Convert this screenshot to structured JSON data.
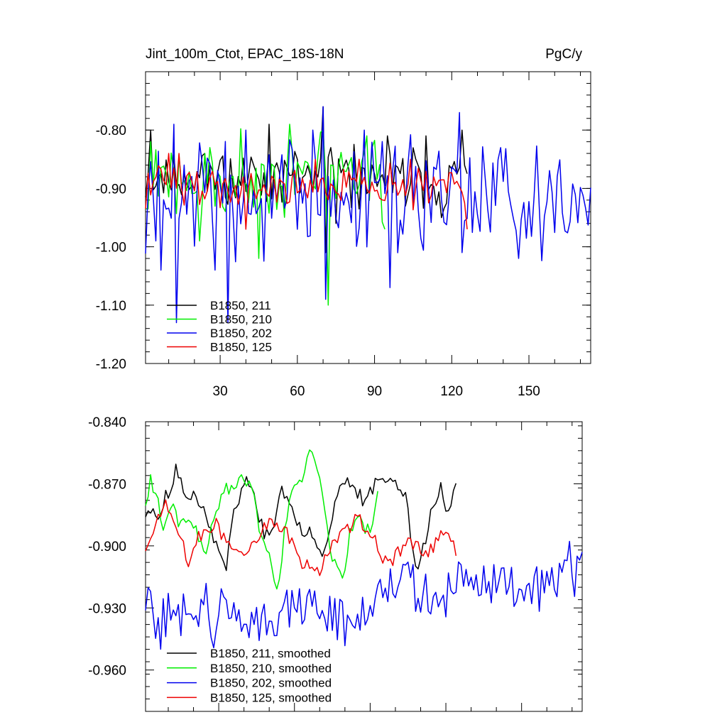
{
  "chart_data": [
    {
      "type": "line",
      "title": "Jint_100m_Ctot, EPAC_18S-18N",
      "units": "PgC/y",
      "xlim": [
        1,
        174
      ],
      "ylim": [
        -1.2,
        -0.7
      ],
      "xticks": [
        30,
        60,
        90,
        120,
        150
      ],
      "yticks": [
        -1.2,
        -1.1,
        -1.0,
        -0.9,
        -0.8
      ],
      "ytick_labels": [
        "-1.20",
        "-1.10",
        "-1.00",
        "-0.90",
        "-0.80"
      ],
      "legend_position": "bottom-left",
      "series": [
        {
          "name": "B1850, 211",
          "color": "#000000",
          "length": 126,
          "mean": -0.882,
          "noise": 0.04,
          "seed": 11,
          "peaks": [
            [
              3,
              -0.8
            ],
            [
              24,
              -0.84
            ],
            [
              49,
              -0.79
            ],
            [
              60,
              -0.85
            ],
            [
              70,
              -0.76
            ],
            [
              71,
              -1.01
            ],
            [
              73,
              -0.83
            ],
            [
              75,
              -0.96
            ],
            [
              95,
              -0.81
            ],
            [
              110,
              -0.81
            ],
            [
              116,
              -0.95
            ],
            [
              124,
              -0.8
            ]
          ]
        },
        {
          "name": "B1850, 210",
          "color": "#00ee00",
          "length": 94,
          "mean": -0.878,
          "noise": 0.05,
          "seed": 21,
          "peaks": [
            [
              3,
              -0.82
            ],
            [
              22,
              -0.99
            ],
            [
              26,
              -0.83
            ],
            [
              45,
              -1.02
            ],
            [
              57,
              -0.79
            ],
            [
              70,
              -0.8
            ],
            [
              72,
              -1.1
            ],
            [
              78,
              -0.87
            ],
            [
              87,
              -0.81
            ],
            [
              94,
              -0.97
            ]
          ]
        },
        {
          "name": "B1850, 202",
          "color": "#0000ee",
          "length": 174,
          "mean": -0.91,
          "noise": 0.07,
          "seed": 31,
          "peaks": [
            [
              5,
              -0.99
            ],
            [
              7,
              -1.04
            ],
            [
              12,
              -0.79
            ],
            [
              13,
              -1.13
            ],
            [
              16,
              -0.86
            ],
            [
              28,
              -1.04
            ],
            [
              33,
              -1.13
            ],
            [
              40,
              -0.8
            ],
            [
              60,
              -0.97
            ],
            [
              66,
              -0.8
            ],
            [
              70,
              -0.76
            ],
            [
              71,
              -1.09
            ],
            [
              86,
              -0.8
            ],
            [
              96,
              -1.07
            ],
            [
              123,
              -0.77
            ],
            [
              124,
              -1.01
            ],
            [
              139,
              -0.83
            ],
            [
              146,
              -1.02
            ],
            [
              176,
              -0.83
            ]
          ]
        },
        {
          "name": "B1850, 125",
          "color": "#ee0000",
          "length": 126,
          "mean": -0.895,
          "noise": 0.025,
          "seed": 41,
          "peaks": [
            [
              1,
              -0.935
            ],
            [
              10,
              -0.84
            ],
            [
              14,
              -0.84
            ],
            [
              40,
              -0.97
            ],
            [
              84,
              -0.85
            ],
            [
              104,
              -0.85
            ],
            [
              126,
              -0.97
            ]
          ]
        }
      ]
    },
    {
      "type": "line",
      "title": "",
      "units": "",
      "xlim": [
        1,
        174
      ],
      "ylim": [
        -0.98,
        -0.84
      ],
      "xticks": [
        30,
        60,
        90,
        120,
        150
      ],
      "yticks": [
        -0.96,
        -0.93,
        -0.9,
        -0.87,
        -0.84
      ],
      "ytick_labels": [
        "-0.960",
        "-0.930",
        "-0.900",
        "-0.870",
        "-0.840"
      ],
      "legend_position": "bottom-left",
      "series": [
        {
          "name": "B1850, 211, smoothed",
          "color": "#000000",
          "length": 121,
          "keypoints": [
            [
              1,
              -0.8845
            ],
            [
              3,
              -0.882
            ],
            [
              5,
              -0.887
            ],
            [
              10,
              -0.874
            ],
            [
              13,
              -0.864
            ],
            [
              16,
              -0.872
            ],
            [
              20,
              -0.876
            ],
            [
              24,
              -0.88
            ],
            [
              27,
              -0.893
            ],
            [
              30,
              -0.905
            ],
            [
              33,
              -0.91
            ],
            [
              36,
              -0.885
            ],
            [
              40,
              -0.868
            ],
            [
              44,
              -0.876
            ],
            [
              48,
              -0.895
            ],
            [
              51,
              -0.895
            ],
            [
              55,
              -0.872
            ],
            [
              58,
              -0.878
            ],
            [
              62,
              -0.892
            ],
            [
              66,
              -0.892
            ],
            [
              70,
              -0.905
            ],
            [
              74,
              -0.892
            ],
            [
              77,
              -0.876
            ],
            [
              80,
              -0.87
            ],
            [
              84,
              -0.872
            ],
            [
              88,
              -0.88
            ],
            [
              92,
              -0.87
            ],
            [
              96,
              -0.866
            ],
            [
              100,
              -0.868
            ],
            [
              104,
              -0.874
            ],
            [
              106,
              -0.893
            ],
            [
              108,
              -0.911
            ],
            [
              110,
              -0.908
            ],
            [
              114,
              -0.885
            ],
            [
              118,
              -0.872
            ],
            [
              121,
              -0.884
            ],
            [
              124,
              -0.872
            ]
          ]
        },
        {
          "name": "B1850, 210, smoothed",
          "color": "#00ee00",
          "length": 94,
          "keypoints": [
            [
              1,
              -0.879
            ],
            [
              3,
              -0.869
            ],
            [
              6,
              -0.876
            ],
            [
              8,
              -0.893
            ],
            [
              11,
              -0.88
            ],
            [
              14,
              -0.888
            ],
            [
              18,
              -0.885
            ],
            [
              21,
              -0.89
            ],
            [
              24,
              -0.905
            ],
            [
              27,
              -0.893
            ],
            [
              30,
              -0.88
            ],
            [
              33,
              -0.873
            ],
            [
              37,
              -0.871
            ],
            [
              40,
              -0.866
            ],
            [
              44,
              -0.876
            ],
            [
              47,
              -0.897
            ],
            [
              50,
              -0.9
            ],
            [
              53,
              -0.924
            ],
            [
              55,
              -0.905
            ],
            [
              58,
              -0.876
            ],
            [
              62,
              -0.871
            ],
            [
              66,
              -0.852
            ],
            [
              69,
              -0.86
            ],
            [
              72,
              -0.884
            ],
            [
              75,
              -0.906
            ],
            [
              79,
              -0.918
            ],
            [
              82,
              -0.895
            ],
            [
              86,
              -0.886
            ],
            [
              90,
              -0.895
            ],
            [
              93,
              -0.871
            ]
          ]
        },
        {
          "name": "B1850, 202, smoothed",
          "color": "#0000ee",
          "length": 174,
          "keypoints": [
            [
              1,
              -0.926
            ],
            [
              4,
              -0.93
            ],
            [
              7,
              -0.94
            ],
            [
              10,
              -0.932
            ],
            [
              13,
              -0.938
            ],
            [
              17,
              -0.925
            ],
            [
              20,
              -0.93
            ],
            [
              24,
              -0.925
            ],
            [
              28,
              -0.938
            ],
            [
              32,
              -0.93
            ],
            [
              36,
              -0.935
            ],
            [
              40,
              -0.93
            ],
            [
              44,
              -0.938
            ],
            [
              48,
              -0.932
            ],
            [
              52,
              -0.94
            ],
            [
              56,
              -0.935
            ],
            [
              60,
              -0.928
            ],
            [
              64,
              -0.928
            ],
            [
              68,
              -0.932
            ],
            [
              72,
              -0.93
            ],
            [
              76,
              -0.933
            ],
            [
              80,
              -0.938
            ],
            [
              84,
              -0.935
            ],
            [
              88,
              -0.93
            ],
            [
              92,
              -0.925
            ],
            [
              96,
              -0.915
            ],
            [
              100,
              -0.915
            ],
            [
              104,
              -0.915
            ],
            [
              108,
              -0.922
            ],
            [
              112,
              -0.925
            ],
            [
              116,
              -0.928
            ],
            [
              120,
              -0.925
            ],
            [
              124,
              -0.915
            ],
            [
              128,
              -0.915
            ],
            [
              132,
              -0.918
            ],
            [
              136,
              -0.915
            ],
            [
              140,
              -0.918
            ],
            [
              144,
              -0.915
            ],
            [
              148,
              -0.922
            ],
            [
              152,
              -0.925
            ],
            [
              156,
              -0.922
            ],
            [
              160,
              -0.918
            ],
            [
              164,
              -0.915
            ],
            [
              168,
              -0.908
            ],
            [
              172,
              -0.915
            ],
            [
              174,
              -0.91
            ]
          ]
        },
        {
          "name": "B1850, 125, smoothed",
          "color": "#ee0000",
          "length": 121,
          "keypoints": [
            [
              1,
              -0.901
            ],
            [
              4,
              -0.895
            ],
            [
              7,
              -0.883
            ],
            [
              9,
              -0.879
            ],
            [
              12,
              -0.888
            ],
            [
              15,
              -0.897
            ],
            [
              18,
              -0.909
            ],
            [
              21,
              -0.897
            ],
            [
              25,
              -0.894
            ],
            [
              29,
              -0.89
            ],
            [
              33,
              -0.898
            ],
            [
              37,
              -0.901
            ],
            [
              41,
              -0.903
            ],
            [
              45,
              -0.895
            ],
            [
              49,
              -0.89
            ],
            [
              53,
              -0.89
            ],
            [
              57,
              -0.893
            ],
            [
              61,
              -0.906
            ],
            [
              65,
              -0.91
            ],
            [
              69,
              -0.913
            ],
            [
              73,
              -0.905
            ],
            [
              77,
              -0.897
            ],
            [
              81,
              -0.893
            ],
            [
              85,
              -0.884
            ],
            [
              88,
              -0.892
            ],
            [
              91,
              -0.894
            ],
            [
              94,
              -0.903
            ],
            [
              97,
              -0.91
            ],
            [
              100,
              -0.905
            ],
            [
              104,
              -0.899
            ],
            [
              108,
              -0.9
            ],
            [
              112,
              -0.905
            ],
            [
              116,
              -0.899
            ],
            [
              120,
              -0.891
            ],
            [
              124,
              -0.904
            ]
          ]
        }
      ]
    }
  ]
}
